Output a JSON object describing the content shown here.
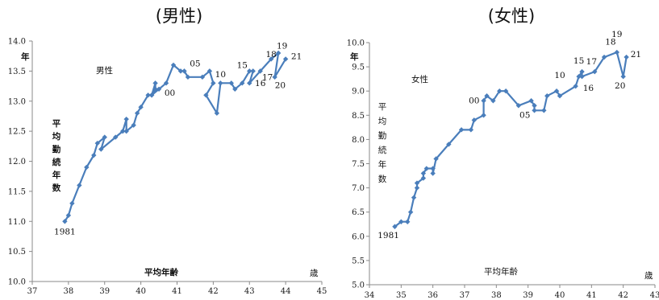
{
  "chart_data": [
    {
      "type": "line",
      "title": "(男性)",
      "series_label": "男性",
      "xlabel": "平均年齢",
      "xunit": "歳",
      "ylabel": "平均勤続年数",
      "yunit": "年",
      "xlim": [
        37,
        45
      ],
      "ylim": [
        10.0,
        14.0
      ],
      "xticks": [
        37,
        38,
        39,
        40,
        41,
        42,
        43,
        44,
        45
      ],
      "yticks": [
        "10.0",
        "10.5",
        "11.0",
        "11.5",
        "12.0",
        "12.5",
        "13.0",
        "13.5",
        "14.0"
      ],
      "color": "#4a7ebb",
      "points": [
        [
          37.9,
          11.0
        ],
        [
          38.0,
          11.1
        ],
        [
          38.1,
          11.3
        ],
        [
          38.3,
          11.6
        ],
        [
          38.5,
          11.9
        ],
        [
          38.7,
          12.1
        ],
        [
          38.8,
          12.3
        ],
        [
          39.0,
          12.4
        ],
        [
          38.9,
          12.2
        ],
        [
          39.3,
          12.4
        ],
        [
          39.5,
          12.5
        ],
        [
          39.6,
          12.7
        ],
        [
          39.6,
          12.5
        ],
        [
          39.8,
          12.6
        ],
        [
          39.9,
          12.8
        ],
        [
          40.0,
          12.9
        ],
        [
          40.2,
          13.1
        ],
        [
          40.3,
          13.1
        ],
        [
          40.4,
          13.2
        ],
        [
          40.4,
          13.3
        ],
        [
          40.3,
          13.1
        ],
        [
          40.5,
          13.2
        ],
        [
          40.7,
          13.3
        ],
        [
          40.9,
          13.6
        ],
        [
          41.1,
          13.5
        ],
        [
          41.2,
          13.5
        ],
        [
          41.3,
          13.4
        ],
        [
          41.7,
          13.4
        ],
        [
          41.9,
          13.5
        ],
        [
          42.0,
          13.3
        ],
        [
          41.8,
          13.1
        ],
        [
          42.1,
          12.8
        ],
        [
          42.2,
          13.3
        ],
        [
          42.5,
          13.3
        ],
        [
          42.6,
          13.2
        ],
        [
          42.8,
          13.3
        ],
        [
          43.0,
          13.5
        ],
        [
          43.1,
          13.5
        ],
        [
          43.0,
          13.3
        ],
        [
          43.3,
          13.5
        ],
        [
          43.6,
          13.7
        ],
        [
          43.8,
          13.8
        ],
        [
          43.7,
          13.4
        ],
        [
          44.0,
          13.7
        ]
      ],
      "annotations": [
        {
          "text": "1981",
          "x": 37.9,
          "y": 10.78
        },
        {
          "text": "00",
          "x": 40.8,
          "y": 13.09
        },
        {
          "text": "05",
          "x": 41.5,
          "y": 13.58
        },
        {
          "text": "10",
          "x": 42.2,
          "y": 13.4
        },
        {
          "text": "15",
          "x": 42.8,
          "y": 13.55
        },
        {
          "text": "16",
          "x": 43.3,
          "y": 13.25
        },
        {
          "text": "17",
          "x": 43.5,
          "y": 13.35
        },
        {
          "text": "18",
          "x": 43.6,
          "y": 13.73
        },
        {
          "text": "19",
          "x": 43.9,
          "y": 13.87
        },
        {
          "text": "20",
          "x": 43.85,
          "y": 13.22
        },
        {
          "text": "21",
          "x": 44.3,
          "y": 13.7
        }
      ]
    },
    {
      "type": "line",
      "title": "(女性)",
      "series_label": "女性",
      "xlabel": "平均年齢",
      "xunit": "歳",
      "ylabel": "平均勤続年数",
      "yunit": "年",
      "xlim": [
        34,
        43
      ],
      "ylim": [
        5.0,
        10.0
      ],
      "xticks": [
        34,
        35,
        36,
        37,
        38,
        39,
        40,
        41,
        42,
        43
      ],
      "yticks": [
        "5.0",
        "5.5",
        "6.0",
        "6.5",
        "7.0",
        "7.5",
        "8.0",
        "8.5",
        "9.0",
        "9.5",
        "10.0"
      ],
      "color": "#4a7ebb",
      "points": [
        [
          34.8,
          6.2
        ],
        [
          35.0,
          6.3
        ],
        [
          35.2,
          6.3
        ],
        [
          35.3,
          6.5
        ],
        [
          35.4,
          6.8
        ],
        [
          35.5,
          7.0
        ],
        [
          35.5,
          7.1
        ],
        [
          35.7,
          7.2
        ],
        [
          35.7,
          7.3
        ],
        [
          35.8,
          7.4
        ],
        [
          36.0,
          7.4
        ],
        [
          36.0,
          7.3
        ],
        [
          36.1,
          7.6
        ],
        [
          36.5,
          7.9
        ],
        [
          36.9,
          8.2
        ],
        [
          37.2,
          8.2
        ],
        [
          37.3,
          8.4
        ],
        [
          37.6,
          8.5
        ],
        [
          37.6,
          8.8
        ],
        [
          37.7,
          8.9
        ],
        [
          37.9,
          8.8
        ],
        [
          38.1,
          9.0
        ],
        [
          38.3,
          9.0
        ],
        [
          38.7,
          8.7
        ],
        [
          39.1,
          8.8
        ],
        [
          39.2,
          8.7
        ],
        [
          39.2,
          8.6
        ],
        [
          39.5,
          8.6
        ],
        [
          39.6,
          8.9
        ],
        [
          39.9,
          9.0
        ],
        [
          40.0,
          8.9
        ],
        [
          40.5,
          9.1
        ],
        [
          40.6,
          9.3
        ],
        [
          40.7,
          9.4
        ],
        [
          40.7,
          9.3
        ],
        [
          41.1,
          9.4
        ],
        [
          41.4,
          9.7
        ],
        [
          41.8,
          9.8
        ],
        [
          42.0,
          9.3
        ],
        [
          42.1,
          9.7
        ]
      ],
      "annotations": [
        {
          "text": "1981",
          "x": 34.6,
          "y": 5.96
        },
        {
          "text": "00",
          "x": 37.3,
          "y": 8.75
        },
        {
          "text": "05",
          "x": 38.9,
          "y": 8.45
        },
        {
          "text": "10",
          "x": 40.0,
          "y": 9.27
        },
        {
          "text": "15",
          "x": 40.6,
          "y": 9.57
        },
        {
          "text": "16",
          "x": 40.9,
          "y": 9.0
        },
        {
          "text": "17",
          "x": 41.0,
          "y": 9.55
        },
        {
          "text": "18",
          "x": 41.6,
          "y": 9.96
        },
        {
          "text": "19",
          "x": 41.8,
          "y": 10.12
        },
        {
          "text": "20",
          "x": 41.9,
          "y": 9.05
        },
        {
          "text": "21",
          "x": 42.4,
          "y": 9.7
        }
      ]
    }
  ]
}
